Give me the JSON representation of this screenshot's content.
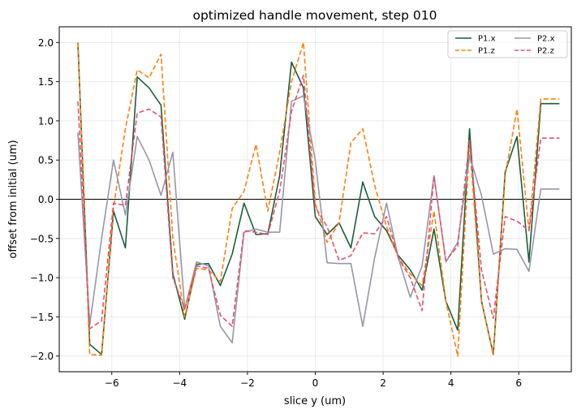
{
  "chart_data": {
    "type": "line",
    "title": "optimized handle movement, step 010",
    "xlabel": "slice y (um)",
    "ylabel": "offset from initial (um)",
    "xlim": [
      -7.55,
      7.55
    ],
    "ylim": [
      -2.2,
      2.2
    ],
    "xticks": [
      -6,
      -4,
      -2,
      0,
      2,
      4,
      6
    ],
    "xtick_labels": [
      "−6",
      "−4",
      "−2",
      "0",
      "2",
      "4",
      "6"
    ],
    "yticks": [
      -2.0,
      -1.5,
      -1.0,
      -0.5,
      0.0,
      0.5,
      1.0,
      1.5,
      2.0
    ],
    "ytick_labels": [
      "−2.0",
      "−1.5",
      "−1.0",
      "−0.5",
      "0.0",
      "0.5",
      "1.0",
      "1.5",
      "2.0"
    ],
    "grid": true,
    "legend_position": "top-right",
    "zero_line": true,
    "x": [
      -7.0,
      -6.65,
      -6.3,
      -5.95,
      -5.6,
      -5.25,
      -4.9,
      -4.55,
      -4.2,
      -3.85,
      -3.5,
      -3.15,
      -2.8,
      -2.45,
      -2.1,
      -1.75,
      -1.4,
      -1.05,
      -0.7,
      -0.35,
      0.0,
      0.35,
      0.7,
      1.05,
      1.4,
      1.75,
      2.1,
      2.45,
      2.8,
      3.15,
      3.5,
      3.85,
      4.2,
      4.55,
      4.9,
      5.25,
      5.6,
      5.95,
      6.3,
      6.65,
      7.0,
      7.2
    ],
    "series": [
      {
        "name": "P1.x",
        "color": "#1b5e3a",
        "dash": "solid",
        "values": [
          2.0,
          -1.85,
          -1.98,
          -0.15,
          -0.62,
          1.56,
          1.42,
          1.2,
          -0.95,
          -1.53,
          -0.83,
          -0.82,
          -1.1,
          -0.7,
          -0.05,
          -0.45,
          -0.44,
          0.3,
          1.75,
          1.42,
          -0.22,
          -0.45,
          -0.3,
          -0.62,
          0.22,
          -0.22,
          -0.4,
          -0.72,
          -0.9,
          -1.16,
          -0.38,
          -1.3,
          -1.67,
          0.9,
          -1.3,
          -1.98,
          0.35,
          0.8,
          -0.8,
          1.22,
          1.22,
          1.22
        ]
      },
      {
        "name": "P1.z",
        "color": "#ff7f0e",
        "dash": "dashed",
        "values": [
          2.0,
          -1.98,
          -1.99,
          -0.1,
          0.9,
          1.65,
          1.55,
          1.85,
          -0.5,
          -1.5,
          -0.88,
          -0.9,
          -1.05,
          -0.12,
          0.1,
          0.7,
          -0.15,
          0.6,
          1.5,
          2.0,
          -0.05,
          -0.55,
          -0.3,
          0.72,
          0.9,
          0.18,
          -0.35,
          -0.75,
          -0.95,
          -1.1,
          -0.15,
          -1.3,
          -2.0,
          0.7,
          -1.3,
          -1.98,
          0.3,
          1.15,
          -0.4,
          1.28,
          1.28,
          1.28
        ]
      },
      {
        "name": "P2.x",
        "color": "#9696a8",
        "dash": "solid",
        "values": [
          0.85,
          -1.6,
          -0.5,
          0.5,
          -0.2,
          0.8,
          0.5,
          0.05,
          0.6,
          -1.4,
          -0.8,
          -0.85,
          -1.62,
          -1.83,
          -0.42,
          -0.38,
          -0.42,
          -0.42,
          1.25,
          1.32,
          0.5,
          -0.81,
          -0.82,
          -0.82,
          -1.62,
          -0.75,
          -0.05,
          -0.75,
          -1.25,
          -0.85,
          0.3,
          -0.8,
          -0.55,
          0.55,
          0.05,
          -0.7,
          -0.63,
          -0.64,
          -0.92,
          0.13,
          0.13,
          0.13
        ]
      },
      {
        "name": "P2.z",
        "color": "#e8506e",
        "dash": "dashed",
        "values": [
          1.25,
          -1.65,
          -1.55,
          -0.05,
          -0.08,
          1.1,
          1.15,
          1.05,
          -1.0,
          -1.4,
          -0.85,
          -0.88,
          -1.48,
          -1.62,
          -0.4,
          -0.42,
          -0.45,
          0.1,
          1.12,
          1.58,
          -0.1,
          -0.35,
          -0.78,
          -0.72,
          -0.43,
          -0.44,
          -0.22,
          -0.75,
          -1.0,
          -1.42,
          0.3,
          -0.78,
          -0.6,
          0.75,
          -0.9,
          -1.52,
          -0.22,
          -0.28,
          -0.4,
          0.78,
          0.78,
          0.78
        ]
      }
    ]
  }
}
